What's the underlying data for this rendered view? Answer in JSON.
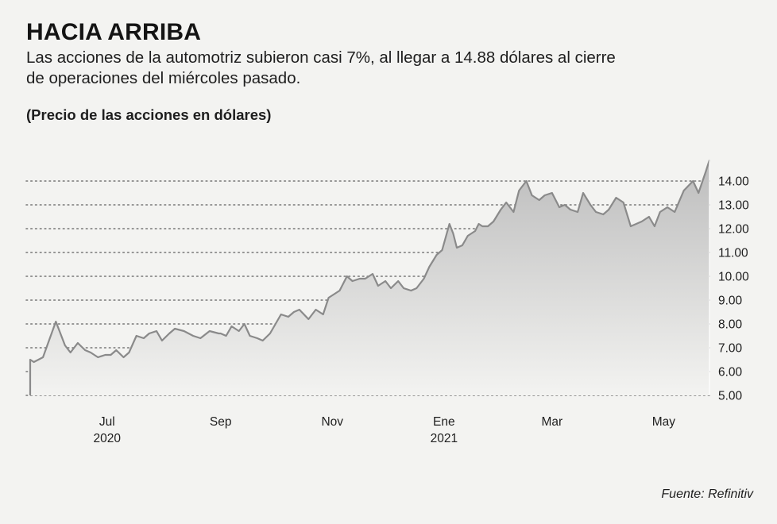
{
  "header": {
    "title": "HACIA ARRIBA",
    "subtitle": "Las acciones de la automotriz subieron casi 7%, al llegar a 14.88 dólares al cierre de operaciones del miércoles pasado.",
    "unit_label": "(Precio de las acciones en dólares)"
  },
  "footer": {
    "source": "Fuente: Refinitiv"
  },
  "colors": {
    "line": "#8a8a8a",
    "fill_top": "#bdbdbd",
    "fill_bottom": "#f3f3f1",
    "grid": "#777777",
    "background": "#f3f3f1"
  },
  "chart_data": {
    "type": "area",
    "title": "HACIA ARRIBA",
    "ylabel": "(Precio de las acciones en dólares)",
    "ylim": [
      5,
      14
    ],
    "y_ticks": [
      {
        "value": 14,
        "label": "14.00"
      },
      {
        "value": 13,
        "label": "13.00"
      },
      {
        "value": 12,
        "label": "12.00"
      },
      {
        "value": 11,
        "label": "11.00"
      },
      {
        "value": 10,
        "label": "10.00"
      },
      {
        "value": 9,
        "label": "9.00"
      },
      {
        "value": 8,
        "label": "8.00"
      },
      {
        "value": 7,
        "label": "7.00"
      },
      {
        "value": 6,
        "label": "6.00"
      },
      {
        "value": 5,
        "label": "5.00"
      }
    ],
    "x_ticks": [
      {
        "date": "2020-07-01",
        "label": "Jul",
        "sublabel": "2020"
      },
      {
        "date": "2020-09-01",
        "label": "Sep",
        "sublabel": ""
      },
      {
        "date": "2020-11-01",
        "label": "Nov",
        "sublabel": ""
      },
      {
        "date": "2021-01-01",
        "label": "Ene",
        "sublabel": "2021"
      },
      {
        "date": "2021-03-01",
        "label": "Mar",
        "sublabel": ""
      },
      {
        "date": "2021-05-01",
        "label": "May",
        "sublabel": ""
      }
    ],
    "grid": true,
    "grid_style": "dotted",
    "legend": "none",
    "series": [
      {
        "x": [
          "2020-05-20",
          "2020-05-22",
          "2020-05-27",
          "2020-06-03",
          "2020-06-08",
          "2020-06-11",
          "2020-06-15",
          "2020-06-19",
          "2020-06-22",
          "2020-06-26",
          "2020-06-30",
          "2020-07-03",
          "2020-07-06",
          "2020-07-10",
          "2020-07-13",
          "2020-07-17",
          "2020-07-21",
          "2020-07-24",
          "2020-07-28",
          "2020-07-31",
          "2020-08-04",
          "2020-08-07",
          "2020-08-12",
          "2020-08-17",
          "2020-08-21",
          "2020-08-26",
          "2020-08-31",
          "2020-09-01",
          "2020-09-04",
          "2020-09-07",
          "2020-09-11",
          "2020-09-14",
          "2020-09-17",
          "2020-09-21",
          "2020-09-24",
          "2020-09-28",
          "2020-10-01",
          "2020-10-04",
          "2020-10-08",
          "2020-10-11",
          "2020-10-14",
          "2020-10-19",
          "2020-10-23",
          "2020-10-27",
          "2020-10-30",
          "2020-11-03",
          "2020-11-05",
          "2020-11-09",
          "2020-11-12",
          "2020-11-16",
          "2020-11-19",
          "2020-11-23",
          "2020-11-26",
          "2020-11-30",
          "2020-12-03",
          "2020-12-07",
          "2020-12-10",
          "2020-12-14",
          "2020-12-17",
          "2020-12-21",
          "2020-12-24",
          "2020-12-28",
          "2020-12-31",
          "2021-01-04",
          "2021-01-06",
          "2021-01-08",
          "2021-01-11",
          "2021-01-14",
          "2021-01-18",
          "2021-01-20",
          "2021-01-22",
          "2021-01-25",
          "2021-01-28",
          "2021-02-01",
          "2021-02-04",
          "2021-02-08",
          "2021-02-11",
          "2021-02-15",
          "2021-02-18",
          "2021-02-22",
          "2021-02-25",
          "2021-03-01",
          "2021-03-05",
          "2021-03-08",
          "2021-03-11",
          "2021-03-15",
          "2021-03-18",
          "2021-03-22",
          "2021-03-25",
          "2021-03-29",
          "2021-04-01",
          "2021-04-05",
          "2021-04-09",
          "2021-04-13",
          "2021-04-19",
          "2021-04-23",
          "2021-04-26",
          "2021-04-29",
          "2021-05-03",
          "2021-05-07",
          "2021-05-12",
          "2021-05-17",
          "2021-05-20",
          "2021-05-24",
          "2021-05-26"
        ],
        "values": [
          6.5,
          6.4,
          6.6,
          8.1,
          7.1,
          6.8,
          7.2,
          6.9,
          6.8,
          6.6,
          6.7,
          6.7,
          6.9,
          6.6,
          6.8,
          7.5,
          7.4,
          7.6,
          7.7,
          7.3,
          7.6,
          7.8,
          7.7,
          7.5,
          7.4,
          7.7,
          7.6,
          7.6,
          7.5,
          7.9,
          7.7,
          8.0,
          7.5,
          7.4,
          7.3,
          7.6,
          8.0,
          8.4,
          8.3,
          8.5,
          8.6,
          8.2,
          8.6,
          8.4,
          9.1,
          9.3,
          9.4,
          10.0,
          9.8,
          9.9,
          9.9,
          10.1,
          9.6,
          9.8,
          9.5,
          9.8,
          9.5,
          9.4,
          9.5,
          9.9,
          10.4,
          10.9,
          11.1,
          12.2,
          11.8,
          11.2,
          11.3,
          11.7,
          11.9,
          12.2,
          12.1,
          12.1,
          12.3,
          12.8,
          13.1,
          12.7,
          13.6,
          14.0,
          13.4,
          13.2,
          13.4,
          13.5,
          12.9,
          13.0,
          12.8,
          12.7,
          13.5,
          13.0,
          12.7,
          12.6,
          12.8,
          13.3,
          13.1,
          12.1,
          12.3,
          12.5,
          12.1,
          12.7,
          12.9,
          12.7,
          13.6,
          14.0,
          13.5,
          14.4,
          14.88
        ]
      }
    ]
  }
}
